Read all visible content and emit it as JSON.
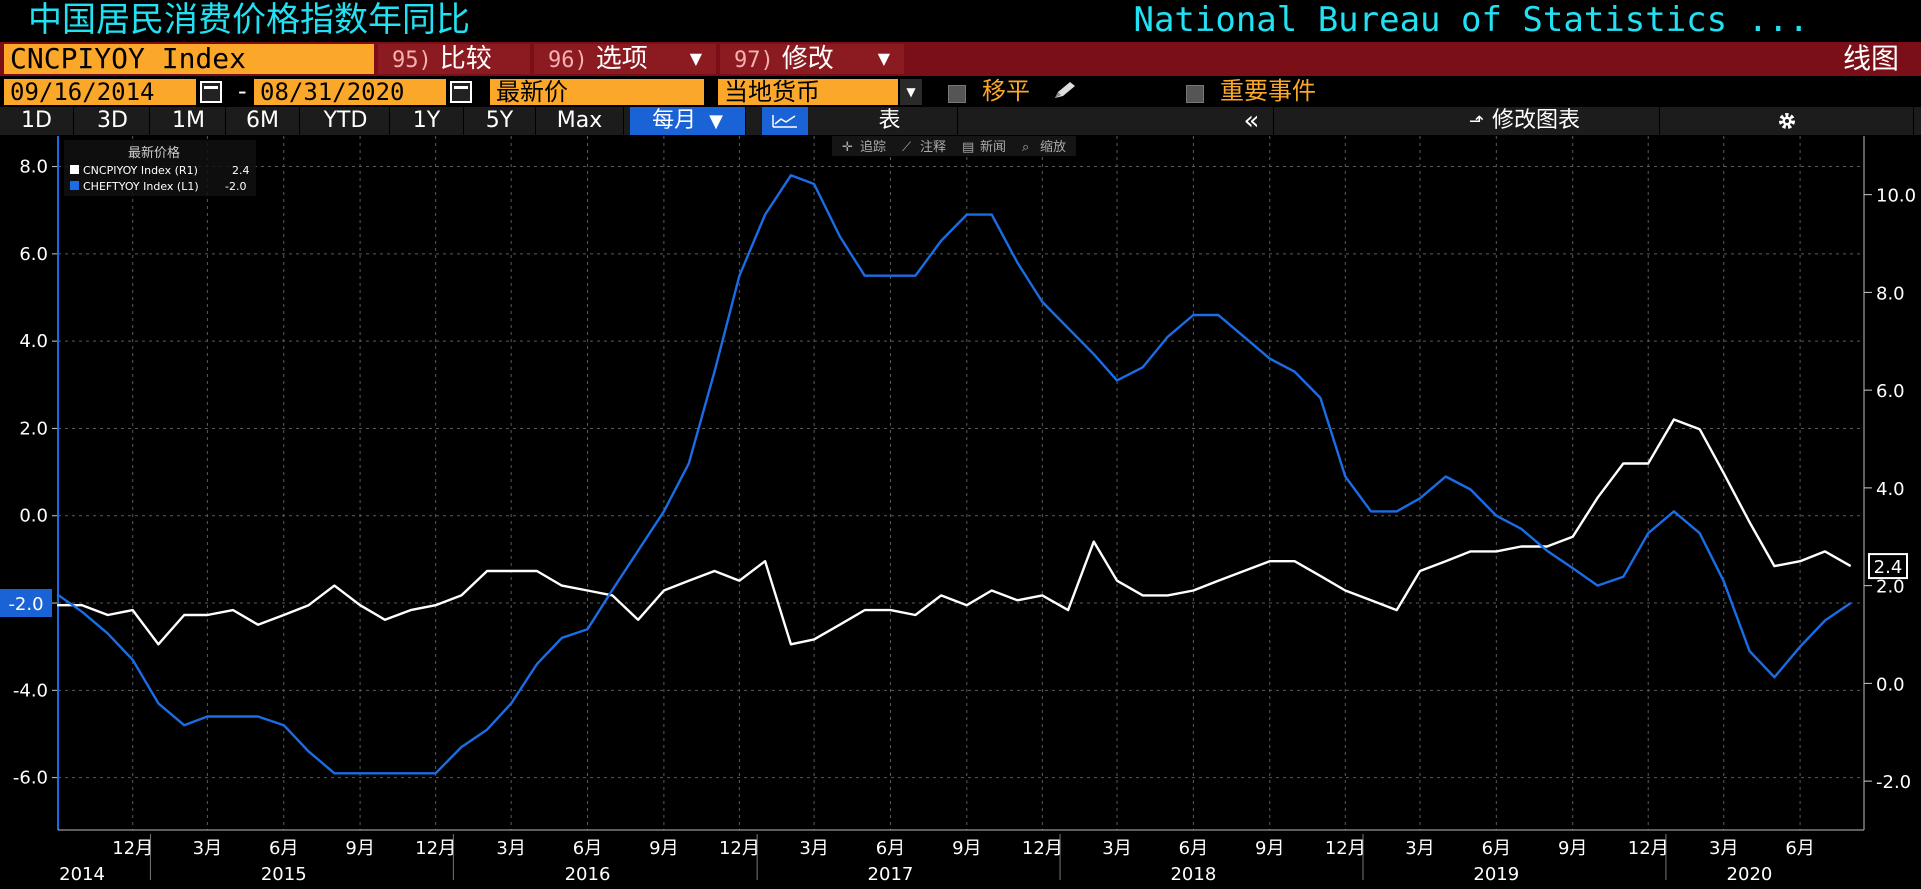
{
  "header": {
    "title_cn": "中国居民消费价格指数年同比",
    "source": "National Bureau of Statistics ..."
  },
  "command_bar": {
    "ticker": "CNCPIYOY Index",
    "buttons": [
      {
        "num": "95)",
        "label": "比较",
        "dropdown": false
      },
      {
        "num": "96)",
        "label": "选项",
        "dropdown": true
      },
      {
        "num": "97)",
        "label": "修改",
        "dropdown": true
      }
    ],
    "chart_type": "线图"
  },
  "date_bar": {
    "start_date": "09/16/2014",
    "separator": "-",
    "end_date": "08/31/2020",
    "price_field": "最新价",
    "currency_field": "当地货币",
    "shift_label": "移平",
    "events_label": "重要事件"
  },
  "timeframe_bar": {
    "ranges": [
      "1D",
      "3D",
      "1M",
      "6M",
      "YTD",
      "1Y",
      "5Y",
      "Max"
    ],
    "frequency": "每月",
    "table_label": "表",
    "collapse_label": "«",
    "edit_chart_label": "修改图表"
  },
  "chart_tools": [
    "追踪",
    "注释",
    "新闻",
    "缩放"
  ],
  "colors": {
    "cyan_title": "#21e1f2",
    "orange_field": "#fba82a",
    "dark_red_bar": "#7a0f17",
    "active_blue": "#1a63d6",
    "series_white": "#ffffff",
    "series_blue": "#1a6de6"
  },
  "chart_data": {
    "type": "line",
    "legend_title": "最新价格",
    "legend_position": "top-left",
    "grid": true,
    "x_tick_labels": [
      {
        "date": "2014-12",
        "label": "12月"
      },
      {
        "date": "2015-03",
        "label": "3月"
      },
      {
        "date": "2015-06",
        "label": "6月"
      },
      {
        "date": "2015-09",
        "label": "9月"
      },
      {
        "date": "2015-12",
        "label": "12月"
      },
      {
        "date": "2016-03",
        "label": "3月"
      },
      {
        "date": "2016-06",
        "label": "6月"
      },
      {
        "date": "2016-09",
        "label": "9月"
      },
      {
        "date": "2016-12",
        "label": "12月"
      },
      {
        "date": "2017-03",
        "label": "3月"
      },
      {
        "date": "2017-06",
        "label": "6月"
      },
      {
        "date": "2017-09",
        "label": "9月"
      },
      {
        "date": "2017-12",
        "label": "12月"
      },
      {
        "date": "2018-03",
        "label": "3月"
      },
      {
        "date": "2018-06",
        "label": "6月"
      },
      {
        "date": "2018-09",
        "label": "9月"
      },
      {
        "date": "2018-12",
        "label": "12月"
      },
      {
        "date": "2019-03",
        "label": "3月"
      },
      {
        "date": "2019-06",
        "label": "6月"
      },
      {
        "date": "2019-09",
        "label": "9月"
      },
      {
        "date": "2019-12",
        "label": "12月"
      },
      {
        "date": "2020-03",
        "label": "3月"
      },
      {
        "date": "2020-06",
        "label": "6月"
      }
    ],
    "year_labels": [
      {
        "date": "2014-10",
        "label": "2014"
      },
      {
        "date": "2015-06",
        "label": "2015"
      },
      {
        "date": "2016-06",
        "label": "2016"
      },
      {
        "date": "2017-06",
        "label": "2017"
      },
      {
        "date": "2018-06",
        "label": "2018"
      },
      {
        "date": "2019-06",
        "label": "2019"
      },
      {
        "date": "2020-04",
        "label": "2020"
      }
    ],
    "x_range": [
      "2014-09-16",
      "2020-08-31"
    ],
    "left_axis": {
      "ticks": [
        "8.0",
        "6.0",
        "4.0",
        "2.0",
        "0.0",
        "-2.0",
        "-4.0",
        "-6.0"
      ],
      "ylim": [
        -7.2,
        8.7
      ]
    },
    "right_axis": {
      "ticks": [
        "10.0",
        "8.0",
        "6.0",
        "4.0",
        "2.0",
        "0.0",
        "-2.0"
      ],
      "ylim": [
        -3.0,
        11.2
      ]
    },
    "series": [
      {
        "name": "CNCPIYOY Index (R1)",
        "last": "2.4",
        "axis": "right",
        "color": "#ffffff",
        "x": [
          "2014-09",
          "2014-10",
          "2014-11",
          "2014-12",
          "2015-01",
          "2015-02",
          "2015-03",
          "2015-04",
          "2015-05",
          "2015-06",
          "2015-07",
          "2015-08",
          "2015-09",
          "2015-10",
          "2015-11",
          "2015-12",
          "2016-01",
          "2016-02",
          "2016-03",
          "2016-04",
          "2016-05",
          "2016-06",
          "2016-07",
          "2016-08",
          "2016-09",
          "2016-10",
          "2016-11",
          "2016-12",
          "2017-01",
          "2017-02",
          "2017-03",
          "2017-04",
          "2017-05",
          "2017-06",
          "2017-07",
          "2017-08",
          "2017-09",
          "2017-10",
          "2017-11",
          "2017-12",
          "2018-01",
          "2018-02",
          "2018-03",
          "2018-04",
          "2018-05",
          "2018-06",
          "2018-07",
          "2018-08",
          "2018-09",
          "2018-10",
          "2018-11",
          "2018-12",
          "2019-01",
          "2019-02",
          "2019-03",
          "2019-04",
          "2019-05",
          "2019-06",
          "2019-07",
          "2019-08",
          "2019-09",
          "2019-10",
          "2019-11",
          "2019-12",
          "2020-01",
          "2020-02",
          "2020-03",
          "2020-04",
          "2020-05",
          "2020-06",
          "2020-07",
          "2020-08"
        ],
        "values": [
          1.6,
          1.6,
          1.4,
          1.5,
          0.8,
          1.4,
          1.4,
          1.5,
          1.2,
          1.4,
          1.6,
          2.0,
          1.6,
          1.3,
          1.5,
          1.6,
          1.8,
          2.3,
          2.3,
          2.3,
          2.0,
          1.9,
          1.8,
          1.3,
          1.9,
          2.1,
          2.3,
          2.1,
          2.5,
          0.8,
          0.9,
          1.2,
          1.5,
          1.5,
          1.4,
          1.8,
          1.6,
          1.9,
          1.7,
          1.8,
          1.5,
          2.9,
          2.1,
          1.8,
          1.8,
          1.9,
          2.1,
          2.3,
          2.5,
          2.5,
          2.2,
          1.9,
          1.7,
          1.5,
          2.3,
          2.5,
          2.7,
          2.7,
          2.8,
          2.8,
          3.0,
          3.8,
          4.5,
          4.5,
          5.4,
          5.2,
          4.3,
          3.3,
          2.4,
          2.5,
          2.7,
          2.4
        ]
      },
      {
        "name": "CHEFTYOY Index (L1)",
        "last": "-2.0",
        "axis": "left",
        "color": "#1a6de6",
        "x": [
          "2014-09",
          "2014-10",
          "2014-11",
          "2014-12",
          "2015-01",
          "2015-02",
          "2015-03",
          "2015-04",
          "2015-05",
          "2015-06",
          "2015-07",
          "2015-08",
          "2015-09",
          "2015-10",
          "2015-11",
          "2015-12",
          "2016-01",
          "2016-02",
          "2016-03",
          "2016-04",
          "2016-05",
          "2016-06",
          "2016-07",
          "2016-08",
          "2016-09",
          "2016-10",
          "2016-11",
          "2016-12",
          "2017-01",
          "2017-02",
          "2017-03",
          "2017-04",
          "2017-05",
          "2017-06",
          "2017-07",
          "2017-08",
          "2017-09",
          "2017-10",
          "2017-11",
          "2017-12",
          "2018-01",
          "2018-02",
          "2018-03",
          "2018-04",
          "2018-05",
          "2018-06",
          "2018-07",
          "2018-08",
          "2018-09",
          "2018-10",
          "2018-11",
          "2018-12",
          "2019-01",
          "2019-02",
          "2019-03",
          "2019-04",
          "2019-05",
          "2019-06",
          "2019-07",
          "2019-08",
          "2019-09",
          "2019-10",
          "2019-11",
          "2019-12",
          "2020-01",
          "2020-02",
          "2020-03",
          "2020-04",
          "2020-05",
          "2020-06",
          "2020-07",
          "2020-08"
        ],
        "values": [
          -1.8,
          -2.2,
          -2.7,
          -3.3,
          -4.3,
          -4.8,
          -4.6,
          -4.6,
          -4.6,
          -4.8,
          -5.4,
          -5.9,
          -5.9,
          -5.9,
          -5.9,
          -5.9,
          -5.3,
          -4.9,
          -4.3,
          -3.4,
          -2.8,
          -2.6,
          -1.7,
          -0.8,
          0.1,
          1.2,
          3.3,
          5.5,
          6.9,
          7.8,
          7.6,
          6.4,
          5.5,
          5.5,
          5.5,
          6.3,
          6.9,
          6.9,
          5.8,
          4.9,
          4.3,
          3.7,
          3.1,
          3.4,
          4.1,
          4.6,
          4.6,
          4.1,
          3.6,
          3.3,
          2.7,
          0.9,
          0.1,
          0.1,
          0.4,
          0.9,
          0.6,
          0.0,
          -0.3,
          -0.8,
          -1.2,
          -1.6,
          -1.4,
          -0.4,
          0.1,
          -0.4,
          -1.5,
          -3.1,
          -3.7,
          -3.0,
          -2.4,
          -2.0
        ]
      }
    ]
  }
}
